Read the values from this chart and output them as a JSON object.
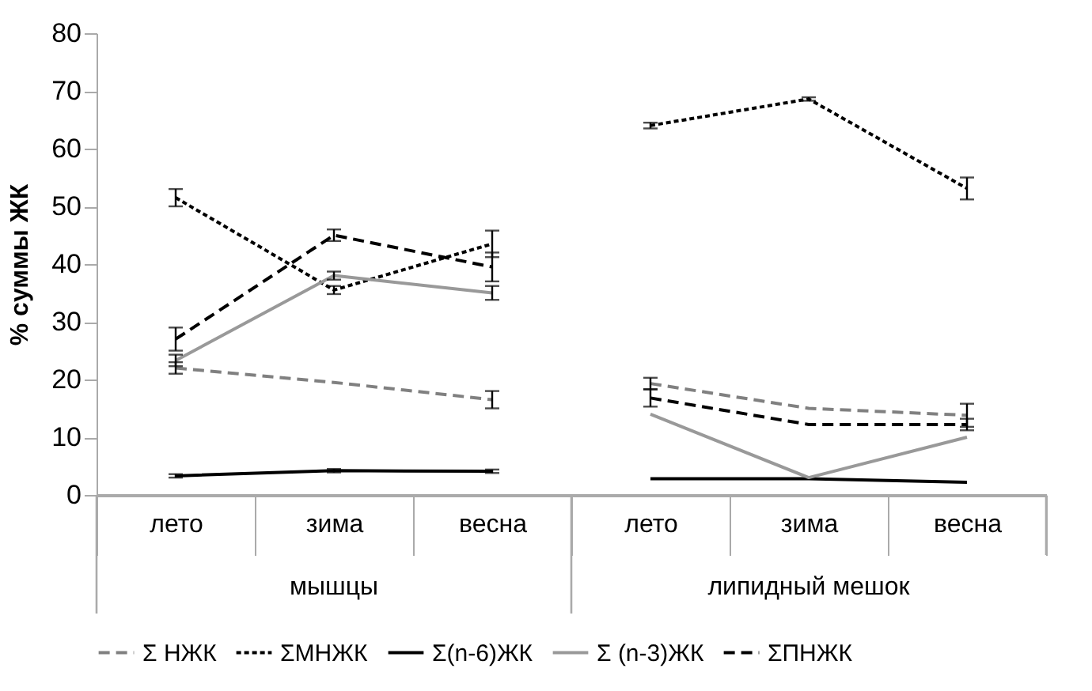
{
  "chart_data": {
    "type": "line",
    "ylabel": "% суммы ЖК",
    "categories": [
      "лето",
      "зима",
      "весна",
      "лето",
      "зима",
      "весна"
    ],
    "annotations": [
      "мышцы",
      "липидный мешок"
    ],
    "ylim": [
      0,
      80
    ],
    "yticks": [
      0,
      10,
      20,
      30,
      40,
      50,
      60,
      70,
      80
    ],
    "grid": false,
    "legend": "bottom",
    "marker": "none",
    "series": [
      {
        "name": "Σ НЖК",
        "color": "#808080",
        "line_style": "dashed",
        "values": [
          22,
          19.5,
          16.5,
          null,
          null,
          null
        ],
        "errors": [
          1,
          null,
          1.5,
          null,
          null,
          null
        ]
      },
      {
        "name": "ΣМНЖК",
        "color": "#000000",
        "line_style": "dotted",
        "values": [
          51.5,
          35.5,
          43.5,
          null,
          null,
          null
        ],
        "errors": [
          1.5,
          0.7,
          2.3,
          null,
          null,
          null
        ]
      },
      {
        "name": "Σ(n-6)ЖК",
        "color": "#000000",
        "line_style": "solid",
        "values": [
          3.3,
          4.2,
          4.1,
          null,
          null,
          null
        ],
        "errors": [
          0.3,
          0.3,
          0.3,
          null,
          null,
          null
        ]
      },
      {
        "name": "Σ (n-3)ЖК",
        "color": "#999999",
        "line_style": "solid",
        "values": [
          23.3,
          38,
          35,
          null,
          null,
          null
        ],
        "errors": [
          1,
          0.7,
          1.2,
          null,
          null,
          null
        ]
      },
      {
        "name": "ΣПНЖК",
        "color": "#000000",
        "line_style": "dashed",
        "values": [
          27,
          45,
          39.5,
          null,
          null,
          null
        ],
        "errors": [
          2,
          1,
          2.5,
          null,
          null,
          null
        ]
      },
      {
        "color": "#808080",
        "line_style": "dashed",
        "values": [
          null,
          null,
          null,
          19.3,
          15,
          13.8
        ],
        "errors": [
          null,
          null,
          null,
          1,
          null,
          2
        ]
      },
      {
        "color": "#000000",
        "line_style": "dotted",
        "values": [
          null,
          null,
          null,
          64,
          68.6,
          53.1
        ],
        "errors": [
          null,
          null,
          null,
          0.5,
          0.3,
          1.9
        ]
      },
      {
        "color": "#000000",
        "line_style": "solid",
        "values": [
          null,
          null,
          null,
          2.8,
          2.8,
          2.2
        ]
      },
      {
        "color": "#999999",
        "line_style": "solid",
        "values": [
          null,
          null,
          null,
          14,
          3,
          10
        ]
      },
      {
        "color": "#000000",
        "line_style": "dashed",
        "values": [
          null,
          null,
          null,
          16.8,
          12.2,
          12.2
        ],
        "errors": [
          null,
          null,
          null,
          1.5,
          null,
          1
        ]
      }
    ]
  }
}
